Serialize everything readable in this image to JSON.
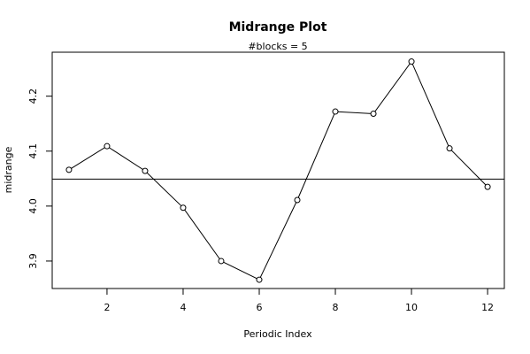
{
  "chart_data": {
    "type": "line",
    "title": "Midrange Plot",
    "subtitle": "#blocks =  5",
    "xlabel": "Periodic Index",
    "ylabel": "midrange",
    "x": [
      1,
      2,
      3,
      4,
      5,
      6,
      7,
      8,
      9,
      10,
      11,
      12
    ],
    "values": [
      4.066,
      4.109,
      4.064,
      3.997,
      3.9,
      3.866,
      4.011,
      4.172,
      4.168,
      4.263,
      4.105,
      4.035
    ],
    "reference_line": 4.049,
    "xlim": [
      0.56,
      12.44
    ],
    "ylim": [
      3.85,
      4.28
    ],
    "x_ticks": [
      2,
      4,
      6,
      8,
      10,
      12
    ],
    "y_ticks": [
      3.9,
      4.0,
      4.1,
      4.2
    ],
    "x_tick_labels": [
      "2",
      "4",
      "6",
      "8",
      "10",
      "12"
    ],
    "y_tick_labels": [
      "3.9",
      "4.0",
      "4.1",
      "4.2"
    ],
    "markers": "open-circle",
    "grid": false,
    "legend": "none"
  }
}
